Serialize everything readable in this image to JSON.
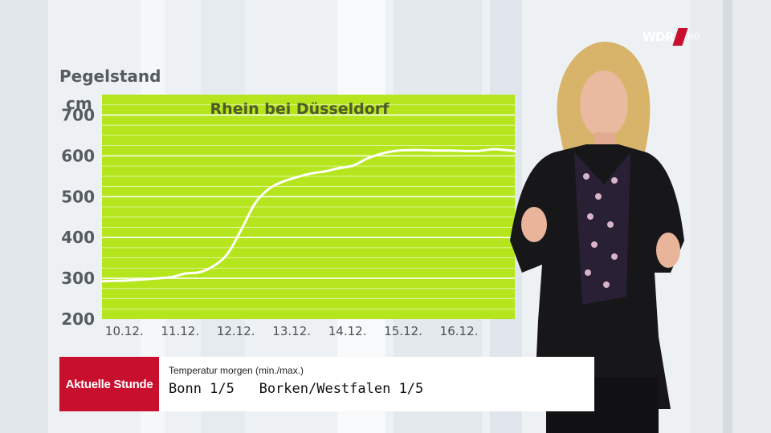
{
  "broadcaster": {
    "logo_text": "WDR",
    "quality_badge": "HD"
  },
  "chart_data": {
    "type": "line",
    "title": "Rhein bei Düsseldorf",
    "ylabel": "Pegelstand",
    "yunit": "cm",
    "ylim": [
      200,
      750
    ],
    "yticks": [
      200,
      300,
      400,
      500,
      600,
      700
    ],
    "xticks": [
      "10.12.",
      "11.12.",
      "12.12.",
      "13.12.",
      "14.12.",
      "15.12.",
      "16.12."
    ],
    "x": [
      10.0,
      10.5,
      11.0,
      11.25,
      11.5,
      11.75,
      12.0,
      12.25,
      12.5,
      12.75,
      13.0,
      13.25,
      13.5,
      13.75,
      14.0,
      14.25,
      14.5,
      14.75,
      15.0,
      15.25,
      15.5,
      15.75,
      16.0,
      16.25,
      16.5,
      16.75,
      17.0,
      17.25,
      17.4
    ],
    "series": [
      {
        "values": [
          293,
          295,
          300,
          303,
          312,
          315,
          330,
          360,
          420,
          485,
          520,
          537,
          548,
          557,
          562,
          570,
          576,
          593,
          605,
          612,
          614,
          614,
          613,
          613,
          612,
          612,
          616,
          614,
          612
        ]
      }
    ],
    "colors": {
      "plot_bg": "#b5e61d",
      "line": "#ffffff",
      "grid": "#ffffff"
    },
    "grid": true,
    "legend": "none"
  },
  "lower_third": {
    "badge": "Aktuelle Stunde",
    "subtitle": "Temperatur morgen (min./max.)",
    "line": "Bonn 1/5   Borken/Westfalen 1/5"
  }
}
